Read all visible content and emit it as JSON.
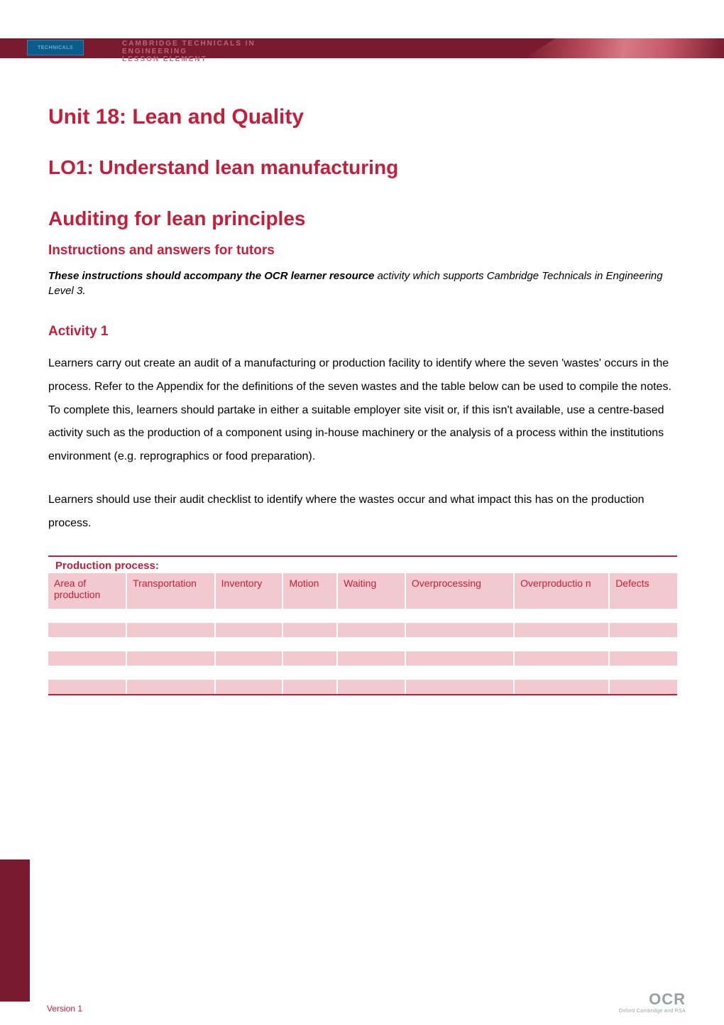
{
  "header": {
    "logo_text": "TECHNICALS",
    "banner_line1": "CAMBRIDGE TECHNICALS IN",
    "banner_line2": "ENGINEERING",
    "banner_line3": "LESSON ELEMENT",
    "banner_bg": "#7a1a2e",
    "banner_text_color": "#b8677a",
    "logo_bg": "#0a5c8a"
  },
  "headings": {
    "unit": "Unit 18: Lean and Quality",
    "lo": "LO1: Understand lean manufacturing",
    "topic": "Auditing for lean principles",
    "subhead": "Instructions and answers for tutors",
    "activity": "Activity 1",
    "color": "#c41e3a"
  },
  "intro": {
    "bold": "These instructions should accompany the OCR learner resource",
    "rest": " activity which supports Cambridge Technicals in Engineering Level 3."
  },
  "paragraphs": {
    "p1": "Learners carry out create an audit of a manufacturing or production facility to identify where the seven 'wastes' occurs in the process. Refer to the Appendix for the definitions of the seven wastes and the table below can be used to compile the notes. To complete this, learners should partake in either a suitable employer site visit or, if this isn't available, use a centre-based activity such as the production of a component using in-house machinery or the analysis of a process within the institutions environment (e.g. reprographics or food preparation).",
    "p2": "Learners should use their audit checklist to identify where the wastes occur and what impact this has on the production process."
  },
  "table": {
    "title": "Production process:",
    "columns": [
      "Area of production",
      "Transportation",
      "Inventory",
      "Motion",
      "Waiting",
      "Overprocessing",
      "Overproductio n",
      "Defects"
    ],
    "header_bg": "#f2c9cf",
    "header_color": "#c41e3a",
    "rule_color": "#c41e3a",
    "row_alt_bg": "#f2c9cf",
    "row_bg": "#ffffff",
    "blank_rows": 5
  },
  "footer": {
    "version": "Version 1",
    "logo_main": "OCR",
    "logo_sub": "Oxford Cambridge and RSA",
    "logo_color": "#9aa0a6"
  }
}
